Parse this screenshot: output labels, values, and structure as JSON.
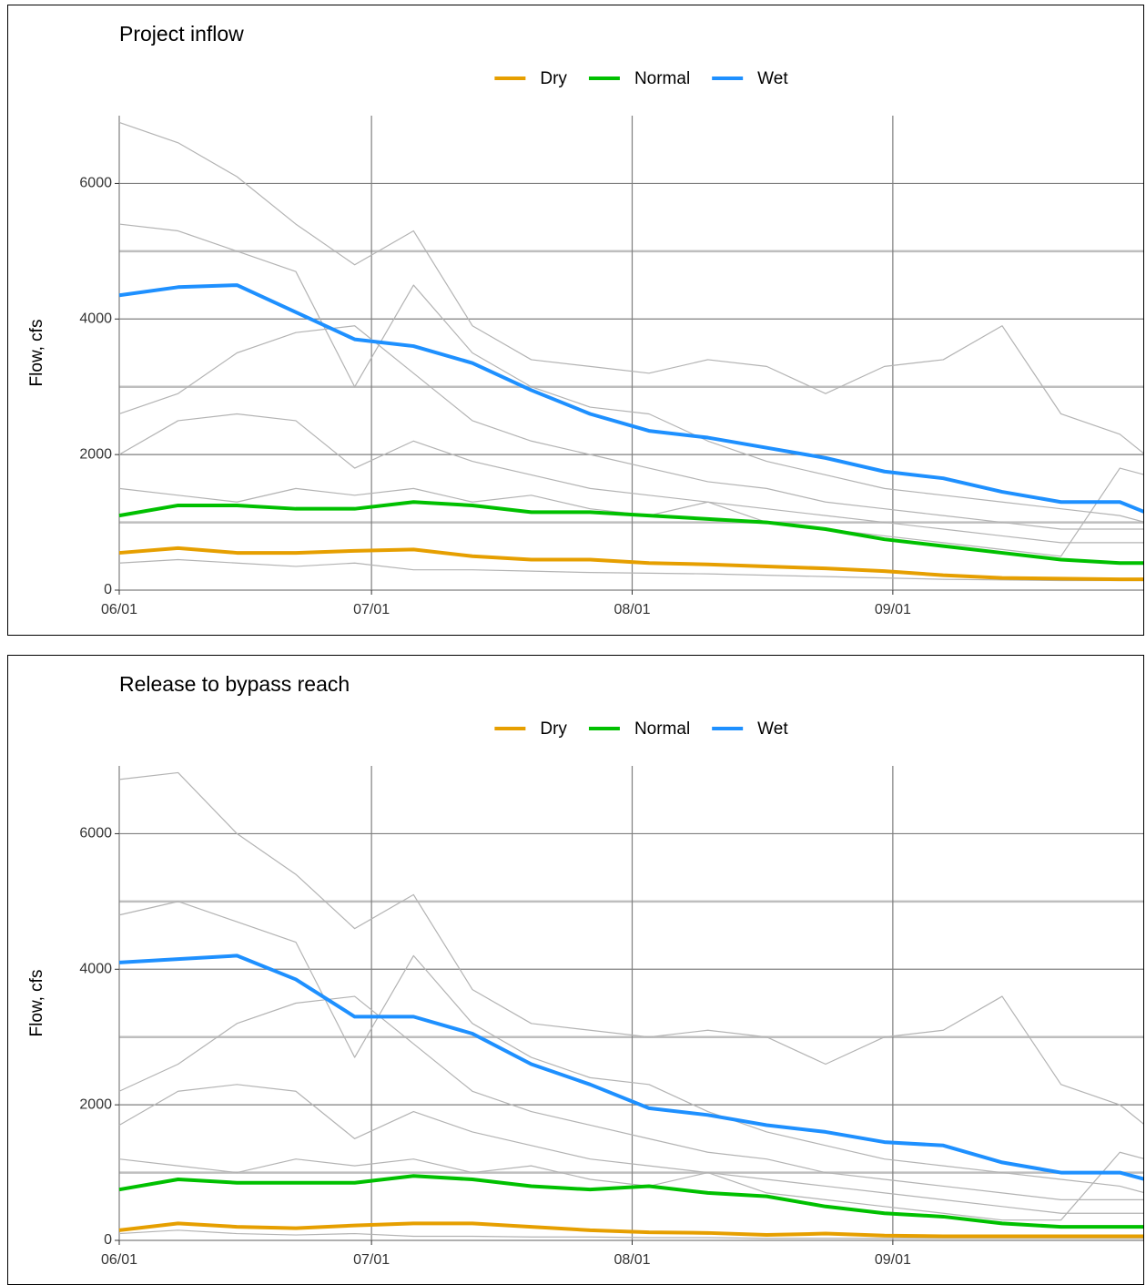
{
  "chart_data": [
    {
      "type": "line",
      "title": "Project inflow",
      "y_label": "Flow, cfs",
      "x": [
        0,
        7,
        14,
        21,
        28,
        35,
        42,
        49,
        56,
        63,
        70,
        77,
        84,
        91,
        98,
        105,
        112,
        119,
        122
      ],
      "xlim": [
        0,
        122
      ],
      "xticks": [
        {
          "value": 0,
          "label": "06/01"
        },
        {
          "value": 30,
          "label": "07/01"
        },
        {
          "value": 61,
          "label": "08/01"
        },
        {
          "value": 92,
          "label": "09/01"
        }
      ],
      "ylim": [
        0,
        7000
      ],
      "yticks": [
        0,
        2000,
        4000,
        6000
      ],
      "minor_yticks": [
        1000,
        3000,
        5000
      ],
      "grid": true,
      "legend": "top",
      "series": [
        {
          "color": "#b3b3b3",
          "values": [
            6900,
            6600,
            6100,
            5400,
            4800,
            5300,
            3900,
            3400,
            3300,
            3200,
            3400,
            3300,
            2900,
            3300,
            3400,
            3900,
            2600,
            2300,
            2000
          ]
        },
        {
          "color": "#b3b3b3",
          "values": [
            5400,
            5300,
            5000,
            4700,
            3000,
            4500,
            3500,
            3000,
            2700,
            2600,
            2200,
            1900,
            1700,
            1500,
            1400,
            1300,
            1200,
            1100,
            1000
          ]
        },
        {
          "color": "#b3b3b3",
          "values": [
            2600,
            2900,
            3500,
            3800,
            3900,
            3200,
            2500,
            2200,
            2000,
            1800,
            1600,
            1500,
            1300,
            1200,
            1100,
            1000,
            900,
            900,
            900
          ]
        },
        {
          "color": "#b3b3b3",
          "values": [
            2000,
            2500,
            2600,
            2500,
            1800,
            2200,
            1900,
            1700,
            1500,
            1400,
            1300,
            1200,
            1100,
            1000,
            900,
            800,
            700,
            700,
            700
          ]
        },
        {
          "color": "#b3b3b3",
          "values": [
            1500,
            1400,
            1300,
            1500,
            1400,
            1500,
            1300,
            1400,
            1200,
            1100,
            1300,
            1000,
            900,
            800,
            700,
            600,
            500,
            1800,
            1700
          ]
        },
        {
          "color": "#b3b3b3",
          "values": [
            400,
            450,
            400,
            350,
            400,
            300,
            300,
            280,
            260,
            250,
            240,
            220,
            200,
            180,
            160,
            150,
            140,
            140,
            140
          ]
        },
        {
          "name": "Dry",
          "color": "#e69f00",
          "values": [
            550,
            620,
            550,
            550,
            580,
            600,
            500,
            450,
            450,
            400,
            380,
            350,
            320,
            280,
            220,
            180,
            170,
            160,
            160
          ]
        },
        {
          "name": "Normal",
          "color": "#00c000",
          "values": [
            1100,
            1250,
            1250,
            1200,
            1200,
            1300,
            1250,
            1150,
            1150,
            1100,
            1050,
            1000,
            900,
            750,
            650,
            550,
            450,
            400,
            400
          ]
        },
        {
          "name": "Wet",
          "color": "#1e90ff",
          "values": [
            4350,
            4470,
            4500,
            4100,
            3700,
            3600,
            3350,
            2950,
            2600,
            2350,
            2250,
            2100,
            1950,
            1750,
            1650,
            1450,
            1300,
            1300,
            1150
          ]
        }
      ]
    },
    {
      "type": "line",
      "title": "Release to bypass reach",
      "y_label": "Flow, cfs",
      "x": [
        0,
        7,
        14,
        21,
        28,
        35,
        42,
        49,
        56,
        63,
        70,
        77,
        84,
        91,
        98,
        105,
        112,
        119,
        122
      ],
      "xlim": [
        0,
        122
      ],
      "xticks": [
        {
          "value": 0,
          "label": "06/01"
        },
        {
          "value": 30,
          "label": "07/01"
        },
        {
          "value": 61,
          "label": "08/01"
        },
        {
          "value": 92,
          "label": "09/01"
        }
      ],
      "ylim": [
        0,
        7000
      ],
      "yticks": [
        0,
        2000,
        4000,
        6000
      ],
      "minor_yticks": [
        1000,
        3000,
        5000
      ],
      "grid": true,
      "legend": "top",
      "series": [
        {
          "color": "#b3b3b3",
          "values": [
            6800,
            6900,
            6000,
            5400,
            4600,
            5100,
            3700,
            3200,
            3100,
            3000,
            3100,
            3000,
            2600,
            3000,
            3100,
            3600,
            2300,
            2000,
            1700
          ]
        },
        {
          "color": "#b3b3b3",
          "values": [
            4800,
            5000,
            4700,
            4400,
            2700,
            4200,
            3200,
            2700,
            2400,
            2300,
            1900,
            1600,
            1400,
            1200,
            1100,
            1000,
            900,
            800,
            700
          ]
        },
        {
          "color": "#b3b3b3",
          "values": [
            2200,
            2600,
            3200,
            3500,
            3600,
            2900,
            2200,
            1900,
            1700,
            1500,
            1300,
            1200,
            1000,
            900,
            800,
            700,
            600,
            600,
            600
          ]
        },
        {
          "color": "#b3b3b3",
          "values": [
            1700,
            2200,
            2300,
            2200,
            1500,
            1900,
            1600,
            1400,
            1200,
            1100,
            1000,
            900,
            800,
            700,
            600,
            500,
            400,
            400,
            400
          ]
        },
        {
          "color": "#b3b3b3",
          "values": [
            1200,
            1100,
            1000,
            1200,
            1100,
            1200,
            1000,
            1100,
            900,
            800,
            1000,
            700,
            600,
            500,
            400,
            300,
            300,
            1300,
            1200
          ]
        },
        {
          "color": "#b3b3b3",
          "values": [
            100,
            150,
            100,
            80,
            100,
            60,
            60,
            50,
            50,
            40,
            40,
            30,
            30,
            30,
            30,
            30,
            30,
            30,
            30
          ]
        },
        {
          "name": "Dry",
          "color": "#e69f00",
          "values": [
            150,
            250,
            200,
            180,
            220,
            250,
            250,
            200,
            150,
            120,
            110,
            80,
            100,
            70,
            60,
            60,
            60,
            60,
            60
          ]
        },
        {
          "name": "Normal",
          "color": "#00c000",
          "values": [
            750,
            900,
            850,
            850,
            850,
            950,
            900,
            800,
            750,
            800,
            700,
            650,
            500,
            400,
            350,
            250,
            200,
            200,
            200
          ]
        },
        {
          "name": "Wet",
          "color": "#1e90ff",
          "values": [
            4100,
            4150,
            4200,
            3850,
            3300,
            3300,
            3050,
            2600,
            2300,
            1950,
            1850,
            1700,
            1600,
            1450,
            1400,
            1150,
            1000,
            1000,
            900
          ]
        }
      ]
    }
  ]
}
